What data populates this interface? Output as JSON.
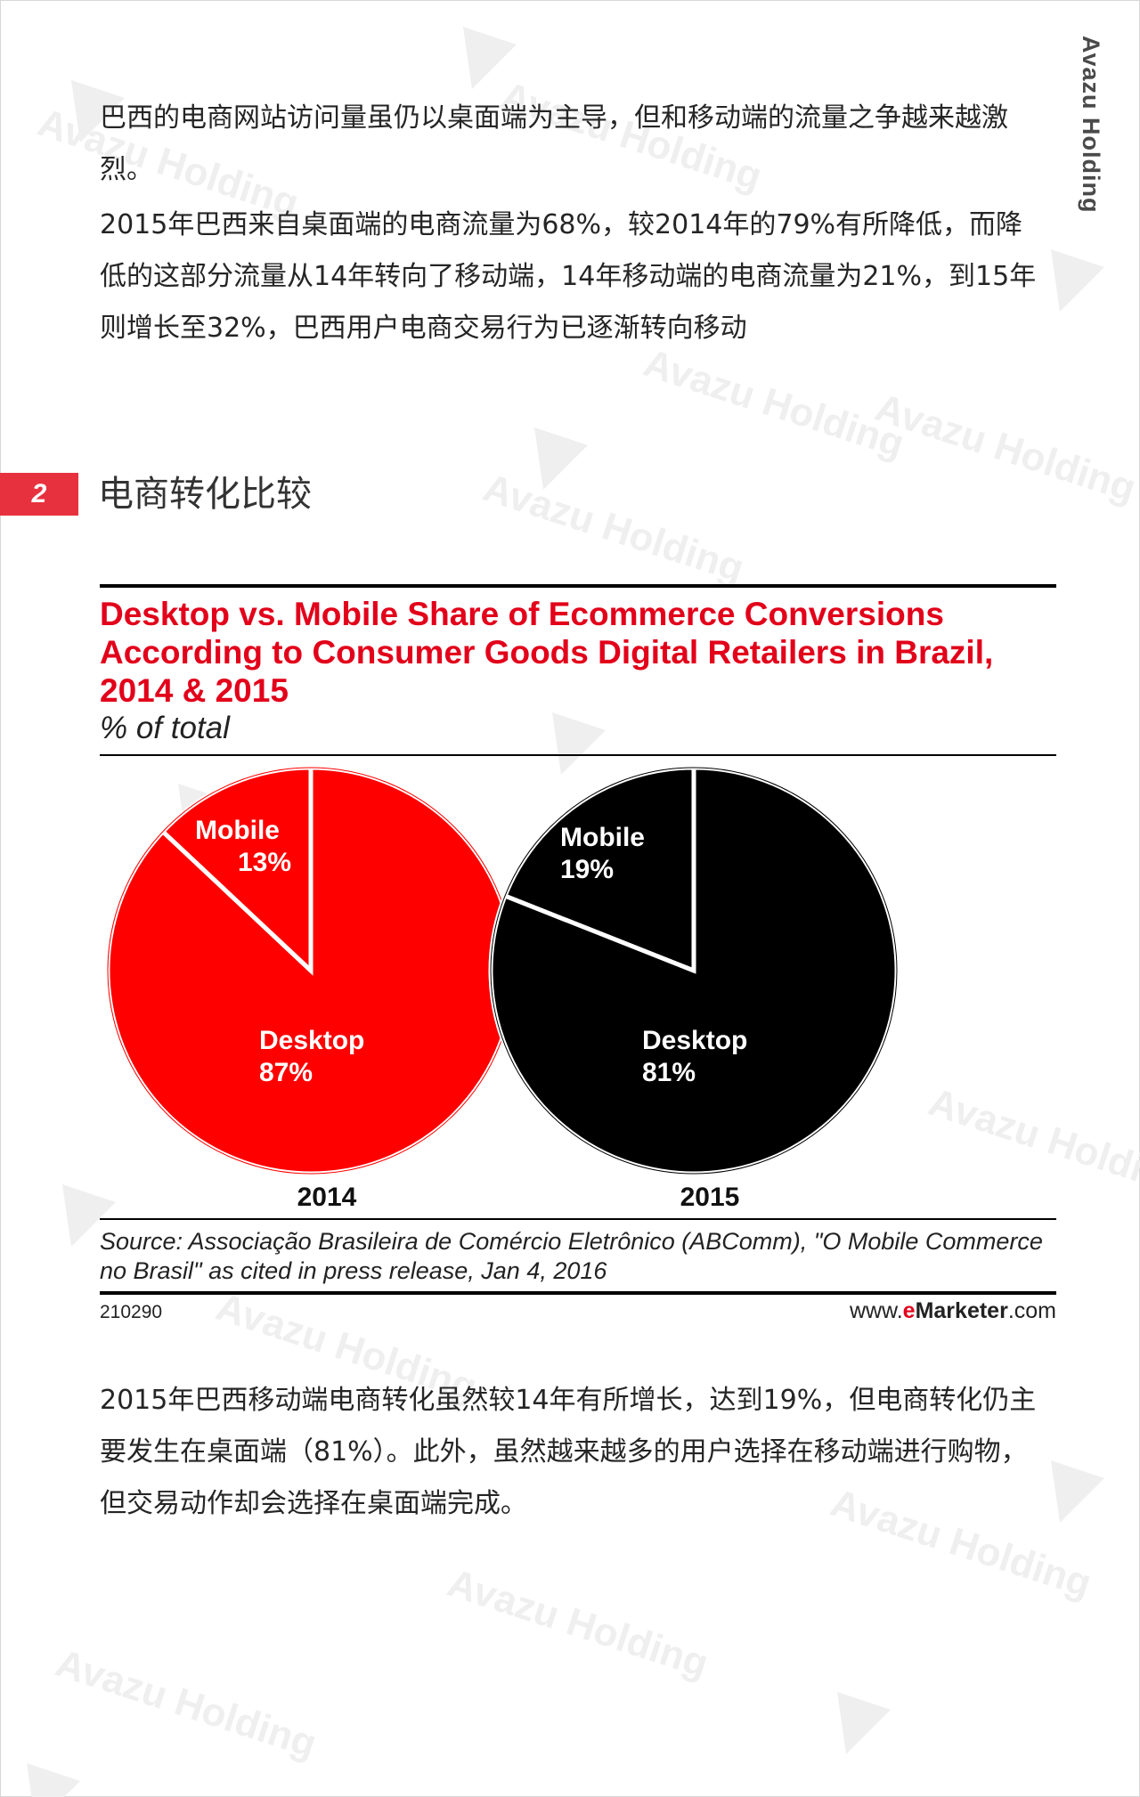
{
  "header": {
    "brand_vertical": "Avazu Holding"
  },
  "watermark": {
    "text": "Avazu Holding"
  },
  "intro": {
    "paragraph1": "巴西的电商网站访问量虽仍以桌面端为主导，但和移动端的流量之争越来越激烈。",
    "paragraph2": "2015年巴西来自桌面端的电商流量为68%，较2014年的79%有所降低，而降低的这部分流量从14年转向了移动端，14年移动端的电商流量为21%，到15年则增长至32%，巴西用户电商交易行为已逐渐转向移动"
  },
  "section": {
    "number": "2",
    "title": "电商转化比较"
  },
  "chart_data": {
    "type": "pie",
    "title": "Desktop vs. Mobile Share of Ecommerce Conversions According to Consumer Goods Digital Retailers in Brazil, 2014 & 2015",
    "subtitle": "% of total",
    "unit": "%",
    "pies": [
      {
        "label": "2014",
        "color": "#ff0000",
        "slices": [
          {
            "name": "Mobile",
            "value": 13,
            "label": "13%"
          },
          {
            "name": "Desktop",
            "value": 87,
            "label": "87%"
          }
        ]
      },
      {
        "label": "2015",
        "color": "#000000",
        "slices": [
          {
            "name": "Mobile",
            "value": 19,
            "label": "19%"
          },
          {
            "name": "Desktop",
            "value": 81,
            "label": "81%"
          }
        ]
      }
    ],
    "source": "Source: Associação Brasileira de Comércio Eletrônico (ABComm), \"O Mobile Commerce no Brasil\" as cited in press release, Jan 4, 2016",
    "chart_id": "210290",
    "credit": {
      "prefix": "www.",
      "accent": "e",
      "brand": "Marketer",
      "suffix": ".com"
    }
  },
  "outro": {
    "paragraph": "2015年巴西移动端电商转化虽然较14年有所增长，达到19%，但电商转化仍主要发生在桌面端（81%）。此外，虽然越来越多的用户选择在移动端进行购物，但交易动作却会选择在桌面端完成。"
  },
  "colors": {
    "section_badge": "#e8313e",
    "chart_title": "#e2001a",
    "pie_2014": "#ff0000",
    "pie_2015": "#000000"
  }
}
